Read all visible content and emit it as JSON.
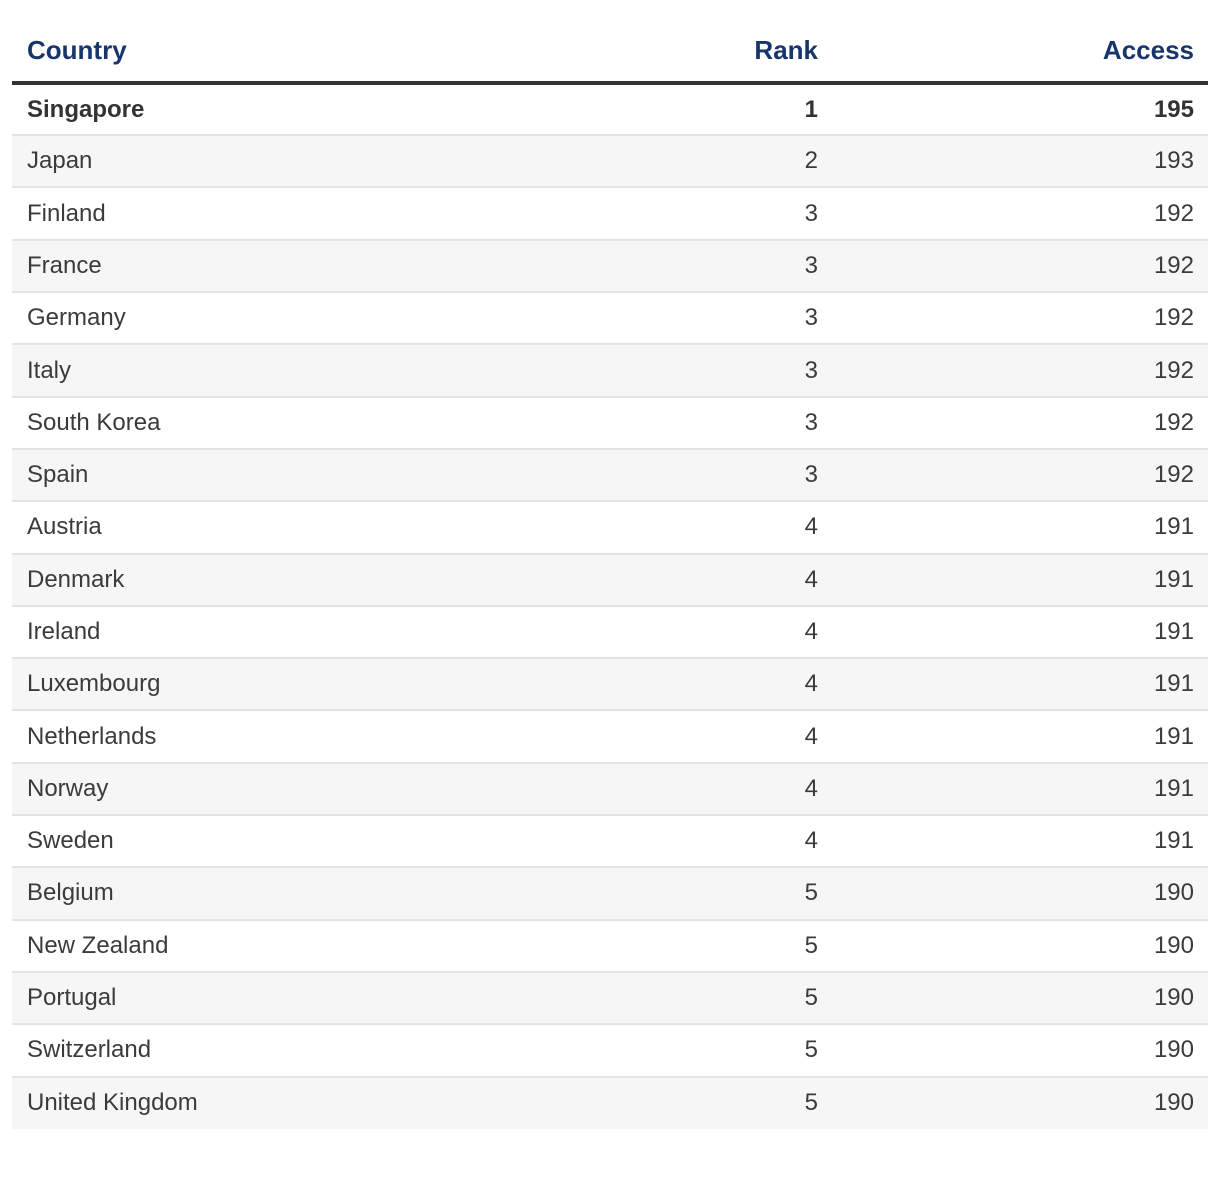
{
  "chart_data": {
    "type": "table",
    "title": "",
    "columns": [
      "Country",
      "Rank",
      "Access"
    ],
    "rows": [
      [
        "Singapore",
        1,
        195
      ],
      [
        "Japan",
        2,
        193
      ],
      [
        "Finland",
        3,
        192
      ],
      [
        "France",
        3,
        192
      ],
      [
        "Germany",
        3,
        192
      ],
      [
        "Italy",
        3,
        192
      ],
      [
        "South Korea",
        3,
        192
      ],
      [
        "Spain",
        3,
        192
      ],
      [
        "Austria",
        4,
        191
      ],
      [
        "Denmark",
        4,
        191
      ],
      [
        "Ireland",
        4,
        191
      ],
      [
        "Luxembourg",
        4,
        191
      ],
      [
        "Netherlands",
        4,
        191
      ],
      [
        "Norway",
        4,
        191
      ],
      [
        "Sweden",
        4,
        191
      ],
      [
        "Belgium",
        5,
        190
      ],
      [
        "New Zealand",
        5,
        190
      ],
      [
        "Portugal",
        5,
        190
      ],
      [
        "Switzerland",
        5,
        190
      ],
      [
        "United Kingdom",
        5,
        190
      ]
    ],
    "highlighted_row": "Singapore",
    "layout": {
      "striped": true,
      "header_rule": true
    }
  },
  "colors": {
    "header_text": "#17356b",
    "header_rule": "#333333",
    "body_text": "#3b3b3b",
    "stripe_background": "#f6f6f6",
    "row_divider": "#e4e4e4",
    "page_background": "#ffffff"
  }
}
